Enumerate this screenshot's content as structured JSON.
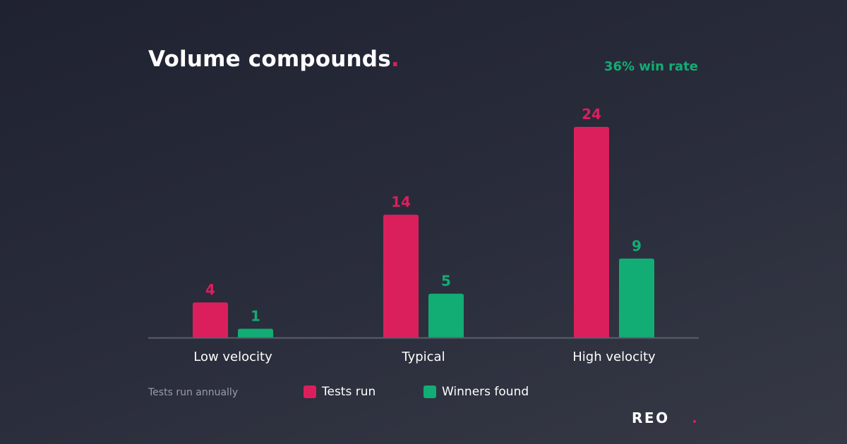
{
  "header": {
    "title": "Volume compounds",
    "title_dot": ".",
    "win_rate": "36% win rate"
  },
  "footnote": "Tests run annually",
  "brand": "REO",
  "colors": {
    "tests_run": "#db1f5d",
    "winners_found": "#12ad74",
    "axis": "#5b5e6c",
    "category_label": "#ffffff"
  },
  "chart_data": {
    "type": "bar",
    "categories": [
      "Low velocity",
      "Typical",
      "High velocity"
    ],
    "series": [
      {
        "name": "Tests run",
        "values": [
          4,
          14,
          24
        ]
      },
      {
        "name": "Winners found",
        "values": [
          1,
          5,
          9
        ]
      }
    ],
    "ylim": [
      0,
      24
    ],
    "grid": false,
    "legend_placement": "bottom"
  }
}
